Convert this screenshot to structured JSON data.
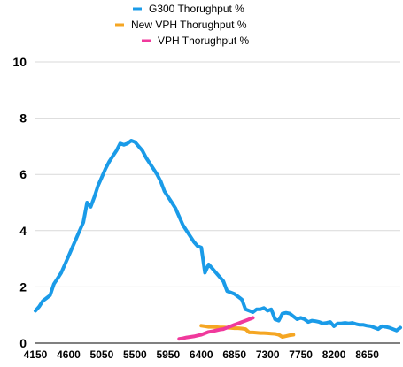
{
  "chart_data": {
    "type": "line",
    "ylim": [
      0,
      10
    ],
    "xlim": [
      4150,
      9100
    ],
    "grid": true,
    "legend_placement": "top-center",
    "yticks": [
      0,
      2,
      4,
      6,
      8,
      10
    ],
    "xticks": [
      4150,
      4600,
      5050,
      5500,
      5950,
      6400,
      6850,
      7300,
      7750,
      8200,
      8650
    ],
    "series": [
      {
        "name": "G300 Thorughput %",
        "color": "#1a9be8",
        "x": [
          4150,
          4200,
          4250,
          4300,
          4350,
          4400,
          4450,
          4500,
          4550,
          4600,
          4650,
          4700,
          4750,
          4800,
          4850,
          4900,
          4950,
          5000,
          5050,
          5100,
          5150,
          5200,
          5250,
          5300,
          5350,
          5400,
          5450,
          5500,
          5550,
          5600,
          5650,
          5700,
          5750,
          5800,
          5850,
          5900,
          5950,
          6000,
          6050,
          6100,
          6150,
          6200,
          6250,
          6300,
          6350,
          6400,
          6450,
          6500,
          6550,
          6600,
          6650,
          6700,
          6750,
          6800,
          6850,
          6900,
          6950,
          7000,
          7050,
          7100,
          7150,
          7200,
          7250,
          7300,
          7350,
          7400,
          7450,
          7500,
          7550,
          7600,
          7650,
          7700,
          7750,
          7800,
          7850,
          7900,
          7950,
          8000,
          8050,
          8100,
          8150,
          8200,
          8250,
          8300,
          8350,
          8400,
          8450,
          8500,
          8550,
          8600,
          8650,
          8700,
          8750,
          8800,
          8850,
          8900,
          8950,
          9000,
          9050,
          9100
        ],
        "values": [
          1.15,
          1.3,
          1.5,
          1.6,
          1.7,
          2.1,
          2.3,
          2.5,
          2.8,
          3.1,
          3.4,
          3.7,
          4.0,
          4.3,
          5.0,
          4.85,
          5.2,
          5.6,
          5.9,
          6.2,
          6.45,
          6.65,
          6.85,
          7.1,
          7.05,
          7.1,
          7.2,
          7.15,
          7.0,
          6.85,
          6.6,
          6.4,
          6.2,
          6.0,
          5.75,
          5.4,
          5.2,
          5.0,
          4.8,
          4.5,
          4.2,
          4.0,
          3.8,
          3.6,
          3.45,
          3.4,
          2.5,
          2.8,
          2.65,
          2.5,
          2.35,
          2.2,
          1.85,
          1.8,
          1.75,
          1.65,
          1.55,
          1.2,
          1.15,
          1.1,
          1.2,
          1.2,
          1.25,
          1.15,
          1.2,
          0.85,
          0.8,
          1.05,
          1.08,
          1.05,
          0.95,
          0.85,
          0.9,
          0.85,
          0.75,
          0.8,
          0.78,
          0.75,
          0.7,
          0.72,
          0.75,
          0.6,
          0.7,
          0.7,
          0.72,
          0.7,
          0.72,
          0.68,
          0.65,
          0.65,
          0.62,
          0.6,
          0.55,
          0.5,
          0.6,
          0.58,
          0.55,
          0.5,
          0.45,
          0.55
        ]
      },
      {
        "name": "New VPH Thorughput %",
        "color": "#f5a623",
        "x": [
          6400,
          6450,
          6500,
          6550,
          6600,
          6650,
          6700,
          6750,
          6800,
          6850,
          6900,
          6950,
          7000,
          7050,
          7100,
          7150,
          7200,
          7250,
          7300,
          7350,
          7400,
          7450,
          7500,
          7550,
          7600,
          7650
        ],
        "values": [
          0.62,
          0.6,
          0.58,
          0.58,
          0.57,
          0.56,
          0.56,
          0.55,
          0.54,
          0.53,
          0.53,
          0.52,
          0.5,
          0.38,
          0.38,
          0.37,
          0.36,
          0.36,
          0.35,
          0.34,
          0.33,
          0.3,
          0.22,
          0.25,
          0.28,
          0.3
        ]
      },
      {
        "name": "VPH Thorughput %",
        "color": "#f0399c",
        "x": [
          6100,
          6150,
          6200,
          6250,
          6300,
          6350,
          6400,
          6450,
          6500,
          6550,
          6600,
          6650,
          6700,
          6750,
          6800,
          6850,
          6900,
          6950,
          7000,
          7050,
          7100
        ],
        "values": [
          0.15,
          0.17,
          0.2,
          0.22,
          0.24,
          0.27,
          0.3,
          0.35,
          0.4,
          0.42,
          0.45,
          0.48,
          0.5,
          0.55,
          0.6,
          0.65,
          0.7,
          0.75,
          0.8,
          0.85,
          0.9
        ]
      }
    ]
  }
}
